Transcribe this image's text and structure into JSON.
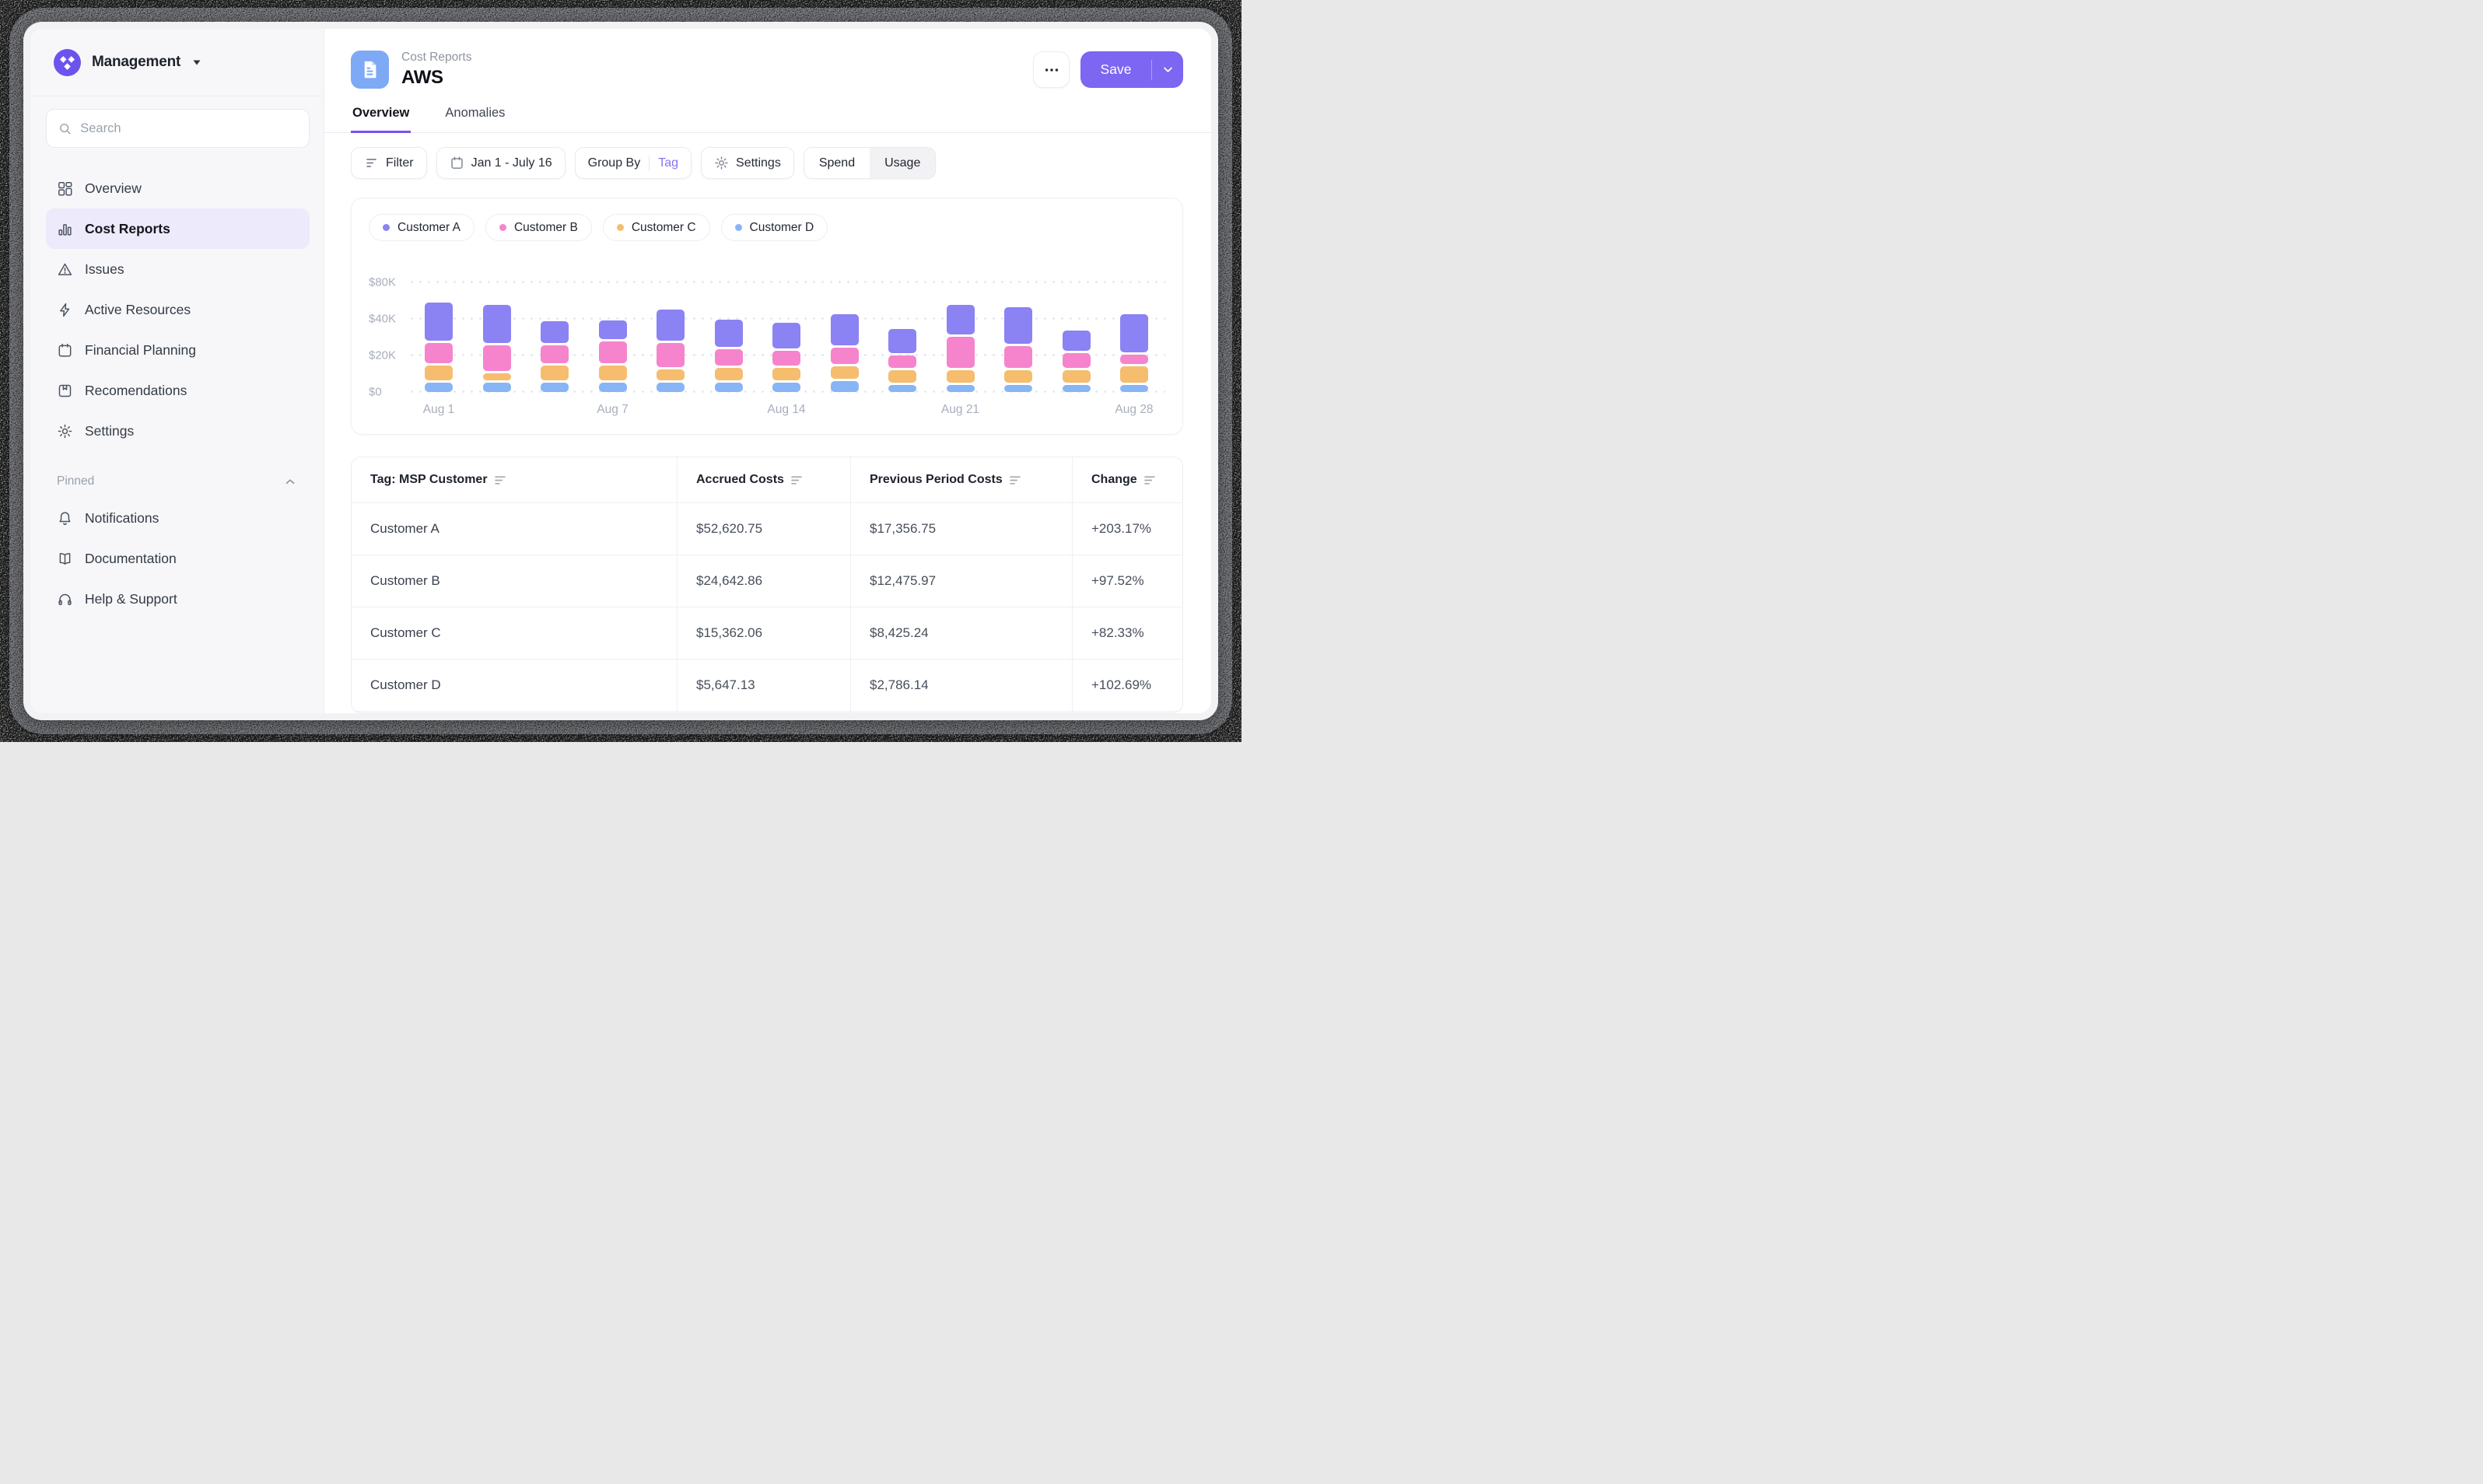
{
  "brand": {
    "workspace": "Management"
  },
  "sidebar": {
    "search_placeholder": "Search",
    "items": [
      {
        "label": "Overview",
        "icon": "grid-icon",
        "active": false
      },
      {
        "label": "Cost Reports",
        "icon": "bar-chart-icon",
        "active": true
      },
      {
        "label": "Issues",
        "icon": "warning-icon",
        "active": false
      },
      {
        "label": "Active Resources",
        "icon": "bolt-icon",
        "active": false
      },
      {
        "label": "Financial Planning",
        "icon": "calendar-icon",
        "active": false
      },
      {
        "label": "Recomendations",
        "icon": "bookmark-icon",
        "active": false
      },
      {
        "label": "Settings",
        "icon": "gear-icon",
        "active": false
      }
    ],
    "pinned_label": "Pinned",
    "pinned_items": [
      {
        "label": "Notifications",
        "icon": "bell-icon"
      },
      {
        "label": "Documentation",
        "icon": "book-icon"
      },
      {
        "label": "Help & Support",
        "icon": "headphones-icon"
      }
    ]
  },
  "header": {
    "breadcrumb": "Cost Reports",
    "title": "AWS",
    "tabs": [
      {
        "label": "Overview",
        "active": true
      },
      {
        "label": "Anomalies",
        "active": false
      }
    ],
    "save_label": "Save"
  },
  "toolbar": {
    "filter_label": "Filter",
    "date_range": "Jan 1 - July 16",
    "group_by_label": "Group By",
    "group_by_value": "Tag",
    "settings_label": "Settings",
    "toggle": [
      {
        "label": "Spend",
        "active": true
      },
      {
        "label": "Usage",
        "active": false
      }
    ]
  },
  "chart_data": {
    "type": "bar",
    "stacked": true,
    "unit": "USD thousands",
    "y_axis": {
      "tick_labels": [
        "$80K",
        "$40K",
        "$20K",
        "$0"
      ],
      "tick_values_k": [
        80,
        40,
        20,
        0
      ]
    },
    "x_axis": {
      "bar_count": 13,
      "visible_tick_labels": [
        "Aug 1",
        "Aug 7",
        "Aug 14",
        "Aug 21",
        "Aug 28"
      ],
      "labeled_bar_indexes": [
        0,
        3,
        6,
        9,
        12
      ]
    },
    "stack_order_bottom_to_top": [
      "Customer D",
      "Customer C",
      "Customer B",
      "Customer A"
    ],
    "series": [
      {
        "name": "Customer A",
        "color": "#8b82f4",
        "values_k": [
          26,
          25,
          12,
          10,
          18,
          15,
          14,
          17,
          13,
          20,
          23,
          11,
          21
        ]
      },
      {
        "name": "Customer B",
        "color": "#f584cd",
        "values_k": [
          11,
          14,
          10,
          12,
          13,
          9,
          8,
          9,
          7,
          17,
          12,
          8,
          5
        ]
      },
      {
        "name": "Customer C",
        "color": "#f5bd6d",
        "values_k": [
          8,
          4,
          8,
          8,
          6,
          7,
          7,
          7,
          7,
          7,
          7,
          7,
          9
        ]
      },
      {
        "name": "Customer D",
        "color": "#87b5f6",
        "values_k": [
          5,
          5,
          5,
          5,
          5,
          5,
          5,
          6,
          4,
          4,
          4,
          4,
          4
        ]
      }
    ],
    "legend_position": "top-left",
    "grid": "dotted-horizontal"
  },
  "table": {
    "columns": [
      {
        "label": "Tag: MSP Customer"
      },
      {
        "label": "Accrued Costs"
      },
      {
        "label": "Previous Period Costs"
      },
      {
        "label": "Change"
      }
    ],
    "rows": [
      [
        "Customer A",
        "$52,620.75",
        "$17,356.75",
        "+203.17%"
      ],
      [
        "Customer B",
        "$24,642.86",
        "$12,475.97",
        "+97.52%"
      ],
      [
        "Customer C",
        "$15,362.06",
        "$8,425.24",
        "+82.33%"
      ],
      [
        "Customer D",
        "$5,647.13",
        "$2,786.14",
        "+102.69%"
      ]
    ]
  },
  "colors": {
    "accent_purple": "#7c66f2",
    "tab_underline": "#7a4ff5",
    "group_by_tag": "#8a70f5",
    "report_tile_blue": "#7ea9f4",
    "active_nav_bg": "#edeafb",
    "logo_purple": "#6d53ee"
  }
}
